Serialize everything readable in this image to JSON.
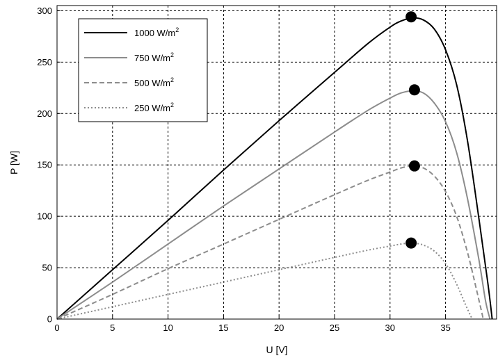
{
  "chart_data": {
    "type": "line",
    "xlabel": "U [V]",
    "ylabel": "P [W]",
    "xlim": [
      0,
      39.6
    ],
    "ylim": [
      0,
      305
    ],
    "x_ticks": [
      0,
      5,
      10,
      15,
      20,
      25,
      30,
      35
    ],
    "y_ticks": [
      0,
      50,
      100,
      150,
      200,
      250,
      300
    ],
    "grid": true,
    "legend_position": "top-left",
    "series": [
      {
        "name": "1000 W/m",
        "name_sup": "2",
        "style": "solid",
        "color": "#000000",
        "x": [
          0,
          5,
          10,
          15,
          20,
          25,
          28,
          30,
          31,
          32,
          33,
          34,
          35,
          36,
          37,
          38,
          38.8,
          39.2
        ],
        "y": [
          0,
          48,
          96,
          145,
          193,
          240,
          268,
          284,
          290,
          293,
          291,
          282,
          262,
          228,
          172,
          98,
          36,
          0
        ],
        "mpp": [
          31.9,
          294
        ]
      },
      {
        "name": "750 W/m",
        "name_sup": "2",
        "style": "solid",
        "color": "#8c8c8c",
        "x": [
          0,
          5,
          10,
          15,
          20,
          25,
          28,
          30,
          31,
          32,
          33,
          34,
          35,
          36,
          37,
          38,
          38.6,
          39.0
        ],
        "y": [
          0,
          36,
          73,
          110,
          146,
          182,
          203,
          215,
          220,
          222,
          220,
          210,
          192,
          162,
          116,
          58,
          18,
          0
        ],
        "mpp": [
          32.2,
          223
        ]
      },
      {
        "name": "500 W/m",
        "name_sup": "2",
        "style": "dashed",
        "color": "#8c8c8c",
        "x": [
          0,
          5,
          10,
          15,
          20,
          25,
          28,
          30,
          31,
          32,
          33,
          34,
          35,
          36,
          37,
          37.8,
          38.4
        ],
        "y": [
          0,
          24,
          49,
          73,
          97,
          121,
          135,
          143,
          147,
          149,
          147,
          139,
          124,
          100,
          64,
          28,
          0
        ],
        "mpp": [
          32.2,
          149
        ]
      },
      {
        "name": "250 W/m",
        "name_sup": "2",
        "style": "dotted",
        "color": "#8c8c8c",
        "x": [
          0,
          5,
          10,
          15,
          20,
          25,
          28,
          30,
          31,
          32,
          33,
          34,
          35,
          36,
          36.8,
          37.4
        ],
        "y": [
          0,
          12,
          24,
          36,
          48,
          60,
          67,
          71,
          73,
          74,
          72,
          66,
          54,
          34,
          14,
          0
        ],
        "mpp": [
          31.9,
          74
        ]
      }
    ]
  }
}
